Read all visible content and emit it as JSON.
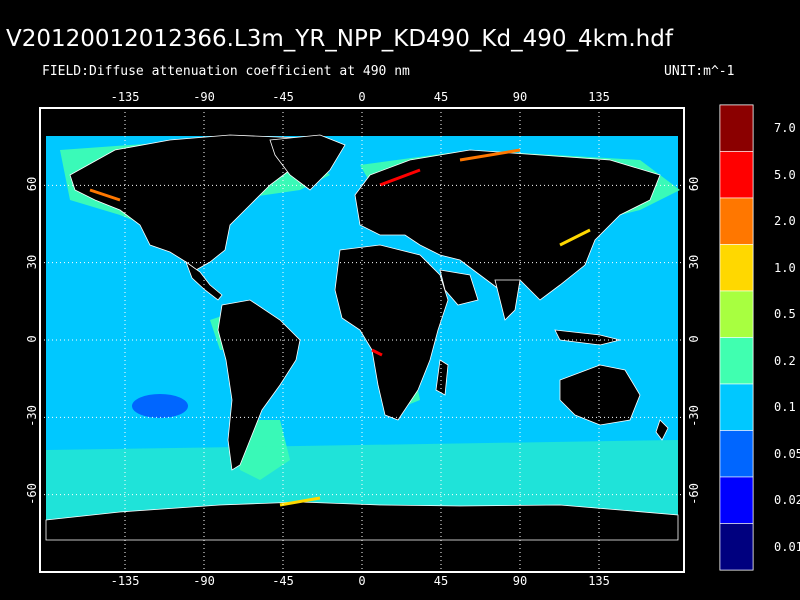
{
  "title": "V20120012012366.L3m_YR_NPP_KD490_Kd_490_4km.hdf",
  "field": "FIELD:Diffuse attenuation coefficient at 490 nm",
  "unit": "UNIT:m^-1",
  "map": {
    "lon_ticks": [
      "-135",
      "-90",
      "-45",
      "0",
      "45",
      "90",
      "135"
    ],
    "lat_ticks": [
      "60",
      "30",
      "0",
      "-30",
      "-60"
    ],
    "land_color": "#000000",
    "ocean_color": "#00c8ff",
    "coast_color": "#ffffff"
  },
  "colorbar": {
    "labels": [
      "7.0",
      "5.0",
      "2.0",
      "1.0",
      "0.5",
      "0.2",
      "0.1",
      "0.05",
      "0.02",
      "0.01"
    ],
    "colors": [
      "#8b0000",
      "#ff0000",
      "#ff7700",
      "#ffd800",
      "#a8ff40",
      "#40ffb0",
      "#00c8ff",
      "#0066ff",
      "#0000ff",
      "#00007f"
    ]
  }
}
